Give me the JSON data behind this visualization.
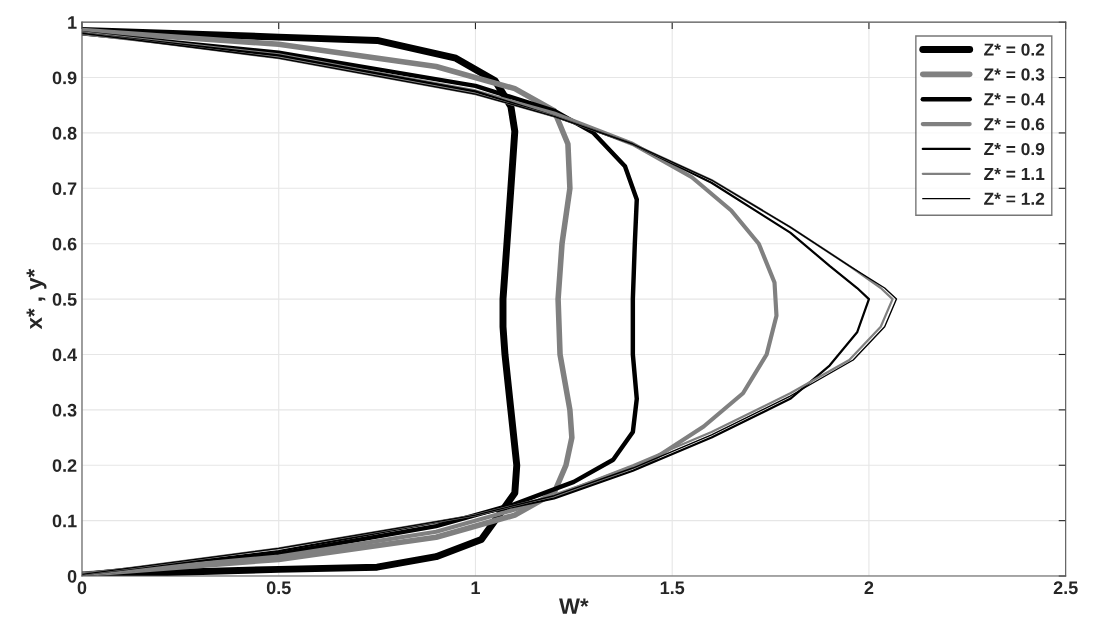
{
  "chart_data": {
    "type": "line",
    "xlabel": "W*",
    "ylabel": "x* , y*",
    "xlim": [
      0,
      2.5
    ],
    "xticks": [
      0,
      0.5,
      1,
      1.5,
      2,
      2.5
    ],
    "ylim": [
      0,
      1
    ],
    "yticks": [
      0,
      0.1,
      0.2,
      0.3,
      0.4,
      0.5,
      0.6,
      0.7,
      0.8,
      0.9,
      1
    ],
    "grid": true,
    "legend": "top right",
    "line_style": "solid",
    "marker": "none",
    "series": [
      {
        "name": "Z* = 0.2",
        "color": "#000000",
        "x": [
          0,
          0.5,
          0.75,
          0.95,
          1.05,
          1.09,
          1.1,
          1.09,
          1.08,
          1.07,
          1.07,
          1.075,
          1.09,
          1.105,
          1.1,
          1.07,
          1.015,
          0.9,
          0.75,
          0.5,
          0
        ],
        "values": [
          0.985,
          0.973,
          0.967,
          0.935,
          0.894,
          0.848,
          0.803,
          0.7,
          0.6,
          0.5,
          0.45,
          0.4,
          0.3,
          0.2,
          0.15,
          0.12,
          0.066,
          0.035,
          0.016,
          0.012,
          0.002
        ]
      },
      {
        "name": "Z* = 0.3",
        "color": "#808080",
        "x": [
          0,
          0.5,
          0.9,
          1.1,
          1.2,
          1.235,
          1.24,
          1.22,
          1.21,
          1.215,
          1.24,
          1.245,
          1.23,
          1.2,
          1.1,
          0.9,
          0.5,
          0
        ],
        "values": [
          0.985,
          0.96,
          0.92,
          0.88,
          0.84,
          0.78,
          0.7,
          0.6,
          0.5,
          0.4,
          0.3,
          0.25,
          0.2,
          0.15,
          0.11,
          0.07,
          0.03,
          0.003
        ]
      },
      {
        "name": "Z* = 0.4",
        "color": "#000000",
        "x": [
          0,
          0.5,
          1.0,
          1.2,
          1.3,
          1.38,
          1.41,
          1.405,
          1.4,
          1.4,
          1.41,
          1.4,
          1.35,
          1.25,
          1.1,
          0.9,
          0.5,
          0
        ],
        "values": [
          0.98,
          0.945,
          0.885,
          0.84,
          0.8,
          0.74,
          0.68,
          0.6,
          0.5,
          0.4,
          0.32,
          0.26,
          0.21,
          0.17,
          0.13,
          0.09,
          0.04,
          0.003
        ]
      },
      {
        "name": "Z* = 0.6",
        "color": "#808080",
        "x": [
          0,
          0.5,
          1.0,
          1.2,
          1.4,
          1.55,
          1.65,
          1.72,
          1.76,
          1.765,
          1.74,
          1.68,
          1.58,
          1.45,
          1.3,
          1.1,
          0.9,
          0.5,
          0
        ],
        "values": [
          0.98,
          0.94,
          0.875,
          0.835,
          0.78,
          0.72,
          0.66,
          0.6,
          0.53,
          0.47,
          0.4,
          0.33,
          0.27,
          0.21,
          0.17,
          0.12,
          0.08,
          0.035,
          0.003
        ]
      },
      {
        "name": "Z* = 0.9",
        "color": "#000000",
        "x": [
          0,
          0.5,
          1.0,
          1.2,
          1.4,
          1.6,
          1.8,
          1.9,
          1.97,
          2.0,
          1.97,
          1.9,
          1.8,
          1.6,
          1.4,
          1.2,
          1.0,
          0.5,
          0
        ],
        "values": [
          0.98,
          0.94,
          0.875,
          0.83,
          0.78,
          0.71,
          0.62,
          0.56,
          0.52,
          0.5,
          0.44,
          0.38,
          0.32,
          0.25,
          0.19,
          0.14,
          0.11,
          0.045,
          0.003
        ]
      },
      {
        "name": "Z* = 1.1",
        "color": "#808080",
        "x": [
          0,
          0.5,
          1.0,
          1.2,
          1.4,
          1.6,
          1.8,
          1.95,
          2.03,
          2.06,
          2.03,
          1.95,
          1.8,
          1.6,
          1.4,
          1.2,
          1.0,
          0.5,
          0
        ],
        "values": [
          0.98,
          0.935,
          0.87,
          0.83,
          0.78,
          0.715,
          0.63,
          0.56,
          0.52,
          0.5,
          0.45,
          0.39,
          0.33,
          0.26,
          0.2,
          0.145,
          0.11,
          0.05,
          0.003
        ]
      },
      {
        "name": "Z* = 1.2",
        "color": "#000000",
        "x": [
          0,
          0.5,
          1.0,
          1.2,
          1.4,
          1.6,
          1.8,
          1.95,
          2.04,
          2.07,
          2.04,
          1.96,
          1.8,
          1.6,
          1.4,
          1.2,
          1.0,
          0.5,
          0
        ],
        "values": [
          0.98,
          0.935,
          0.87,
          0.83,
          0.78,
          0.715,
          0.63,
          0.56,
          0.52,
          0.5,
          0.45,
          0.39,
          0.325,
          0.255,
          0.195,
          0.145,
          0.11,
          0.05,
          0.003
        ]
      }
    ]
  }
}
